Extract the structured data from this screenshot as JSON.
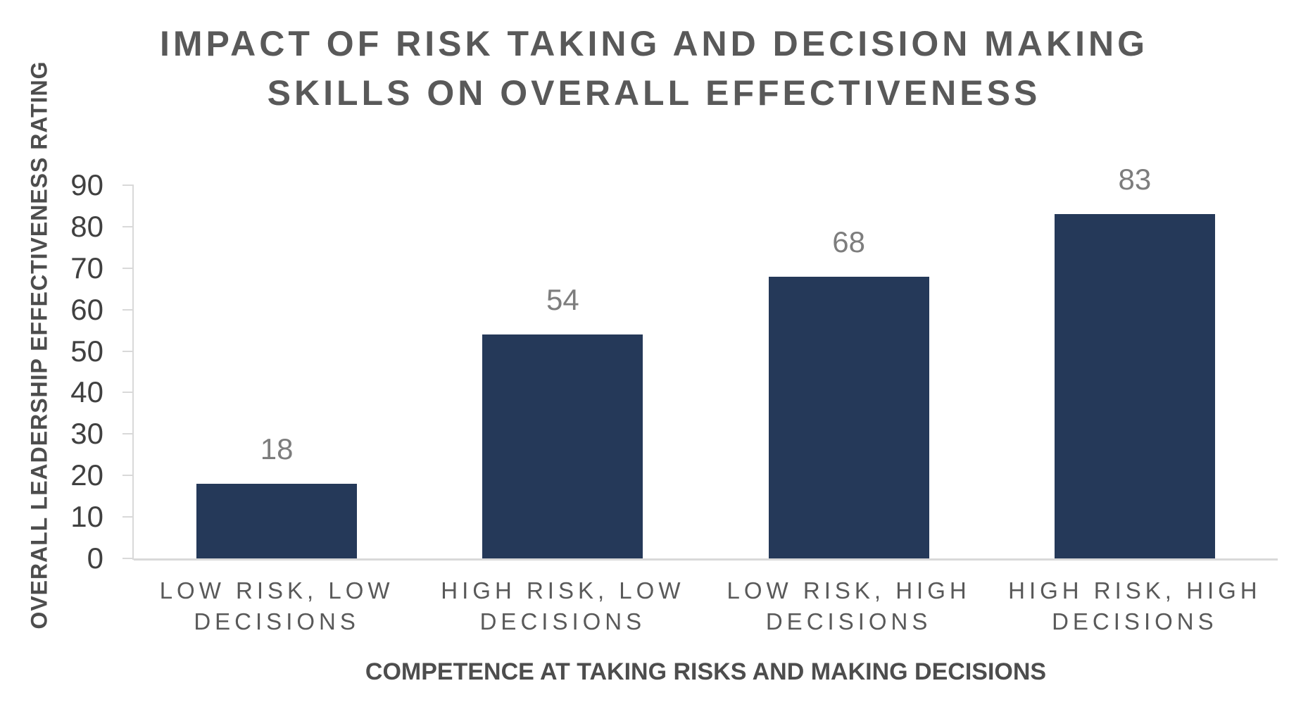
{
  "chart_data": {
    "type": "bar",
    "title": "IMPACT OF RISK TAKING AND DECISION MAKING SKILLS ON OVERALL EFFECTIVENESS",
    "title_lines": [
      "IMPACT OF RISK TAKING AND DECISION MAKING",
      "SKILLS ON OVERALL EFFECTIVENESS"
    ],
    "xlabel": "COMPETENCE AT TAKING RISKS AND MAKING DECISIONS",
    "ylabel": "OVERALL LEADERSHIP EFFECTIVENESS RATING",
    "categories": [
      "LOW RISK, LOW DECISIONS",
      "HIGH RISK, LOW DECISIONS",
      "LOW RISK, HIGH DECISIONS",
      "HIGH RISK, HIGH DECISIONS"
    ],
    "category_lines": [
      [
        "LOW RISK, LOW",
        "DECISIONS"
      ],
      [
        "HIGH RISK, LOW",
        "DECISIONS"
      ],
      [
        "LOW RISK, HIGH",
        "DECISIONS"
      ],
      [
        "HIGH RISK, HIGH",
        "DECISIONS"
      ]
    ],
    "values": [
      18,
      54,
      68,
      83
    ],
    "data_labels": [
      "18",
      "54",
      "68",
      "83"
    ],
    "ylim": [
      0,
      90
    ],
    "yticks": [
      0,
      10,
      20,
      30,
      40,
      50,
      60,
      70,
      80,
      90
    ],
    "grid": false,
    "legend": "none",
    "styles": {
      "bar_color": "#253959",
      "axis_line_color": "#d9d9d9",
      "tick_label_color": "#404040",
      "category_label_color": "#595959",
      "data_label_color": "#7d7d7d",
      "title_color": "#595959",
      "axis_title_color": "#4d4d4d"
    }
  }
}
